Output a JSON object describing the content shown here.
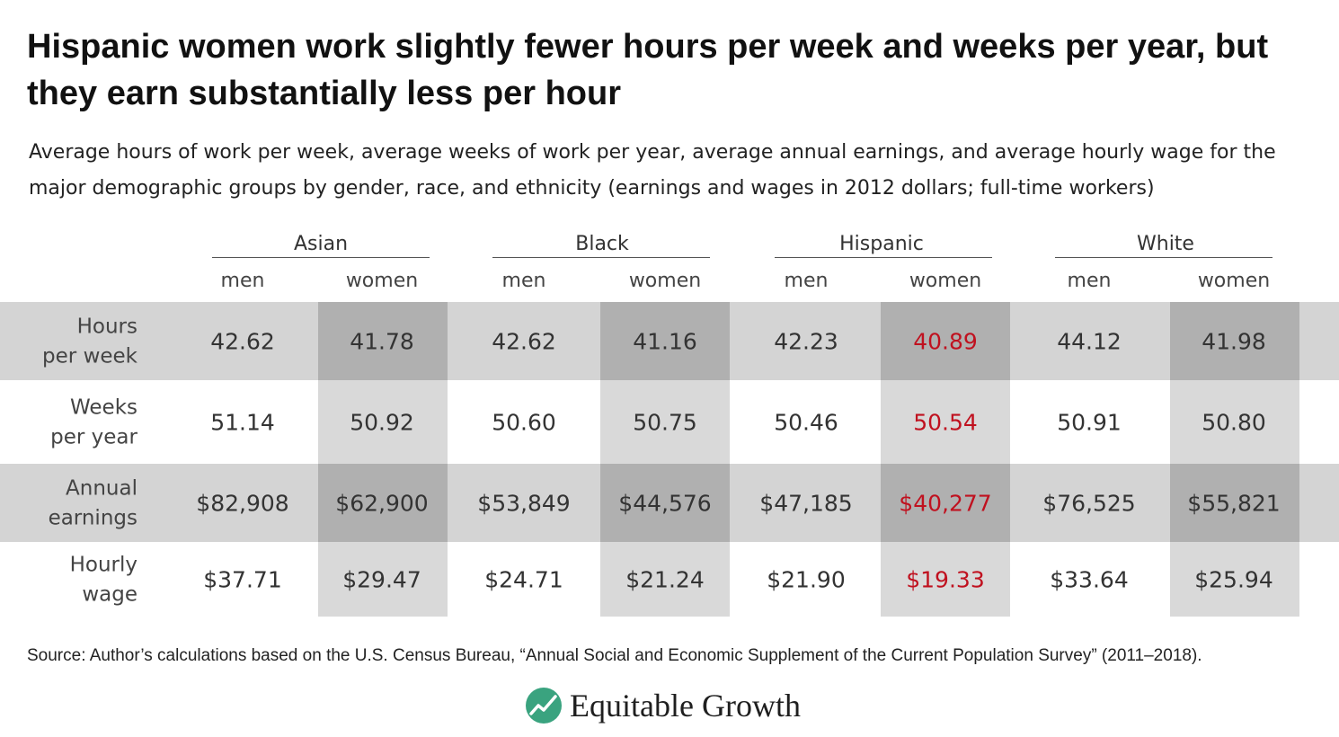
{
  "title": "Hispanic women work slightly fewer hours per week and weeks per year, but they earn substantially less per hour",
  "subtitle": "Average hours of work per week, average weeks of work per year, average annual earnings, and average hourly wage for the major demographic groups by gender, race, and ethnicity (earnings and wages in 2012 dollars; full-time workers)",
  "source": "Source: Author’s calculations based on the U.S. Census Bureau, “Annual Social and Economic Supplement of the Current Population Survey” (2011–2018).",
  "brand": "Equitable Growth",
  "colors": {
    "band": "#d4d4d4",
    "women_col_on_band": "#b0b0b0",
    "women_col_off_band": "#d9d9d9",
    "highlight": "#c0111f",
    "text": "#333333",
    "logo": "#3aa37f"
  },
  "chart_data": {
    "type": "table",
    "groups": [
      "Asian",
      "Black",
      "Hispanic",
      "White"
    ],
    "subgroups": [
      "men",
      "women"
    ],
    "rows": [
      {
        "label": [
          "Hours",
          "per week"
        ],
        "values": [
          "42.62",
          "41.78",
          "42.62",
          "41.16",
          "42.23",
          "40.89",
          "44.12",
          "41.98"
        ]
      },
      {
        "label": [
          "Weeks",
          "per year"
        ],
        "values": [
          "51.14",
          "50.92",
          "50.60",
          "50.75",
          "50.46",
          "50.54",
          "50.91",
          "50.80"
        ]
      },
      {
        "label": [
          "Annual",
          "earnings"
        ],
        "values": [
          "$82,908",
          "$62,900",
          "$53,849",
          "$44,576",
          "$47,185",
          "$40,277",
          "$76,525",
          "$55,821"
        ]
      },
      {
        "label": [
          "Hourly",
          "wage"
        ],
        "values": [
          "$37.71",
          "$29.47",
          "$24.71",
          "$21.24",
          "$21.90",
          "$19.33",
          "$33.64",
          "$25.94"
        ]
      }
    ],
    "highlight": {
      "group": "Hispanic",
      "subgroup": "women"
    }
  }
}
